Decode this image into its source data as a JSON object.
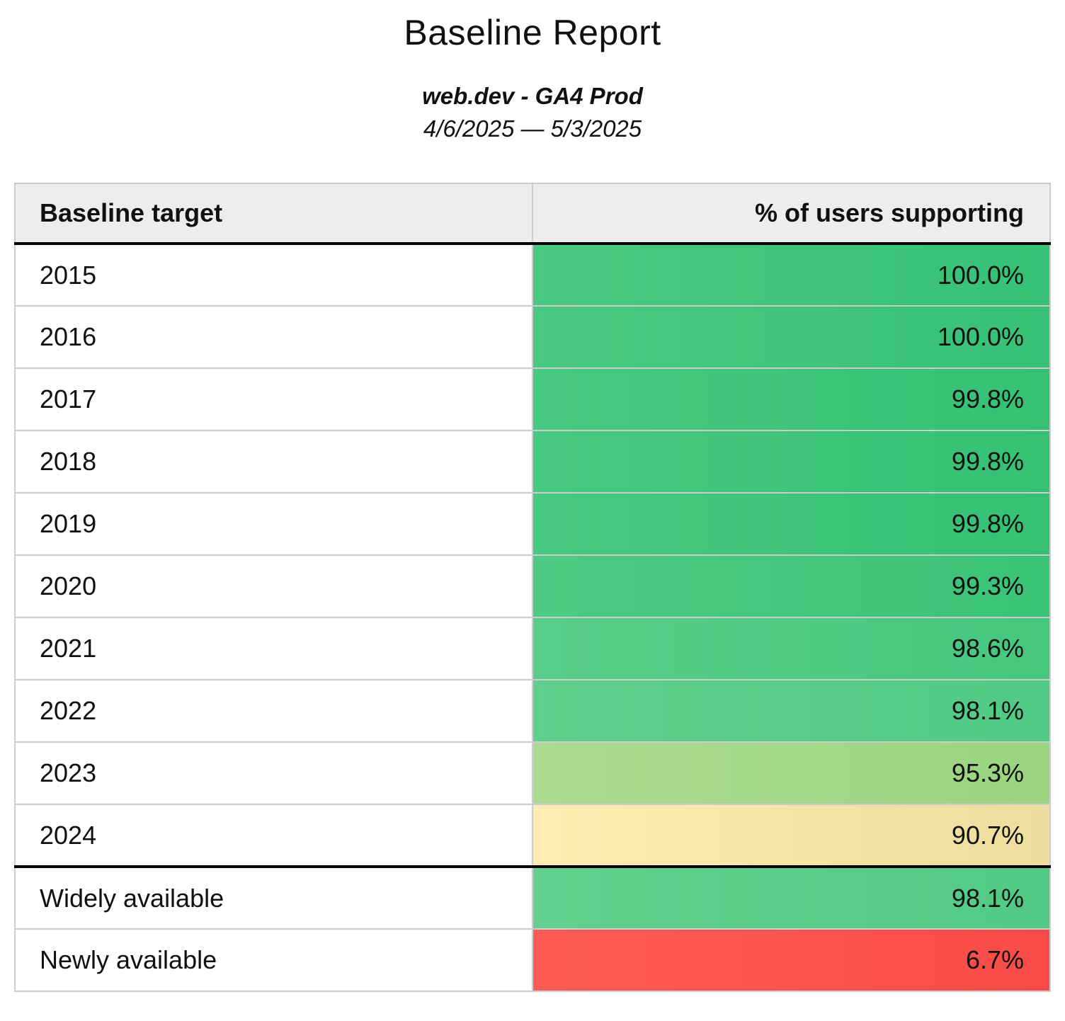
{
  "report": {
    "title": "Baseline Report",
    "property": "web.dev - GA4 Prod",
    "date_range": "4/6/2025 — 5/3/2025"
  },
  "table": {
    "columns": [
      "Baseline target",
      "% of users supporting"
    ],
    "rows": [
      {
        "target": "2015",
        "value": "100.0%",
        "color_start": "#49c981",
        "color_end": "#36c176",
        "section_end": false
      },
      {
        "target": "2016",
        "value": "100.0%",
        "color_start": "#49c981",
        "color_end": "#36c176",
        "section_end": false
      },
      {
        "target": "2017",
        "value": "99.8%",
        "color_start": "#47c880",
        "color_end": "#34c174",
        "section_end": false
      },
      {
        "target": "2018",
        "value": "99.8%",
        "color_start": "#47c880",
        "color_end": "#34c174",
        "section_end": false
      },
      {
        "target": "2019",
        "value": "99.8%",
        "color_start": "#47c880",
        "color_end": "#34c174",
        "section_end": false
      },
      {
        "target": "2020",
        "value": "99.3%",
        "color_start": "#4cca83",
        "color_end": "#3ac377",
        "section_end": false
      },
      {
        "target": "2021",
        "value": "98.6%",
        "color_start": "#57cd88",
        "color_end": "#45c77e",
        "section_end": false
      },
      {
        "target": "2022",
        "value": "98.1%",
        "color_start": "#61cf8d",
        "color_end": "#4fca84",
        "section_end": false
      },
      {
        "target": "2023",
        "value": "95.3%",
        "color_start": "#abdb90",
        "color_end": "#9ad47f",
        "section_end": false
      },
      {
        "target": "2024",
        "value": "90.7%",
        "color_start": "#ffecb2",
        "color_end": "#eedd9d",
        "section_end": true
      },
      {
        "target": "Widely available",
        "value": "98.1%",
        "color_start": "#63d08e",
        "color_end": "#51ca85",
        "section_end": false
      },
      {
        "target": "Newly available",
        "value": "6.7%",
        "color_start": "#ff5b55",
        "color_end": "#f94b47",
        "section_end": false
      }
    ]
  },
  "colors": {
    "page_background": "#ffffff",
    "text": "#111111",
    "header_background": "#ededed",
    "grid_border": "#cccccc",
    "section_border": "#000000",
    "good_green": "#3ec47b",
    "warning_yellow": "#f5e5a6",
    "bad_red": "#fa524d"
  },
  "chart_data": {
    "type": "table",
    "title": "Baseline Report",
    "subtitle": "web.dev - GA4 Prod",
    "date_range": "4/6/2025 — 5/3/2025",
    "columns": [
      "Baseline target",
      "% of users supporting"
    ],
    "categories": [
      "2015",
      "2016",
      "2017",
      "2018",
      "2019",
      "2020",
      "2021",
      "2022",
      "2023",
      "2024",
      "Widely available",
      "Newly available"
    ],
    "values": [
      100.0,
      100.0,
      99.8,
      99.8,
      99.8,
      99.3,
      98.6,
      98.1,
      95.3,
      90.7,
      98.1,
      6.7
    ],
    "value_unit": "%",
    "value_format": "one_decimal_percent",
    "layout_hints": {
      "value_cells_color_scale": "red-yellow-green heatmap by value",
      "thick_divider_after_row": "2024",
      "value_column_alignment": "right"
    }
  }
}
